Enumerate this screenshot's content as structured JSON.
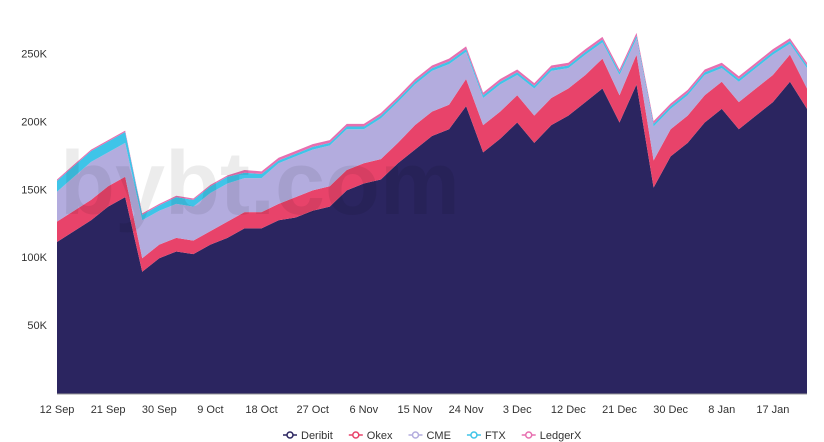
{
  "watermark": "bybt.com",
  "chart_data": {
    "type": "stacked_area",
    "categories": [
      "12 Sep",
      null,
      null,
      "21 Sep",
      null,
      null,
      "30 Sep",
      null,
      null,
      "9 Oct",
      null,
      null,
      "18 Oct",
      null,
      null,
      "27 Oct",
      null,
      null,
      "6 Nov",
      null,
      null,
      "15 Nov",
      null,
      null,
      "24 Nov",
      null,
      null,
      "3 Dec",
      null,
      null,
      "12 Dec",
      null,
      null,
      "21 Dec",
      null,
      null,
      "30 Dec",
      null,
      null,
      "8 Jan",
      null,
      null,
      "17 Jan",
      null,
      null
    ],
    "series": [
      {
        "name": "Deribit",
        "color": "#2b2560",
        "values": [
          112000,
          120000,
          128000,
          138000,
          145000,
          90000,
          100000,
          105000,
          103000,
          110000,
          115000,
          122000,
          122000,
          128000,
          130000,
          135000,
          138000,
          150000,
          155000,
          158000,
          170000,
          180000,
          190000,
          195000,
          212000,
          178000,
          188000,
          200000,
          185000,
          198000,
          205000,
          215000,
          225000,
          200000,
          228000,
          152000,
          175000,
          185000,
          200000,
          210000,
          195000,
          205000,
          215000,
          230000,
          210000
        ]
      },
      {
        "name": "Okex",
        "color": "#e8436a",
        "values": [
          15000,
          15000,
          15000,
          15000,
          15000,
          10000,
          10000,
          10000,
          10000,
          10000,
          12000,
          12000,
          12000,
          12000,
          15000,
          15000,
          15000,
          15000,
          15000,
          15000,
          15000,
          18000,
          18000,
          18000,
          20000,
          20000,
          20000,
          20000,
          20000,
          20000,
          20000,
          20000,
          22000,
          20000,
          22000,
          20000,
          20000,
          20000,
          20000,
          20000,
          20000,
          20000,
          20000,
          20000,
          15000
        ]
      },
      {
        "name": "CME",
        "color": "#b3acde",
        "values": [
          22000,
          25000,
          28000,
          25000,
          25000,
          28000,
          25000,
          25000,
          25000,
          28000,
          28000,
          25000,
          25000,
          30000,
          30000,
          30000,
          30000,
          30000,
          25000,
          30000,
          30000,
          30000,
          30000,
          30000,
          20000,
          20000,
          20000,
          15000,
          20000,
          20000,
          15000,
          15000,
          12000,
          15000,
          12000,
          25000,
          15000,
          15000,
          15000,
          10000,
          15000,
          15000,
          15000,
          8000,
          15000
        ]
      },
      {
        "name": "FTX",
        "color": "#3fc4e8",
        "values": [
          8000,
          8000,
          8000,
          8000,
          8000,
          4000,
          4000,
          5000,
          5000,
          5000,
          5000,
          4000,
          3000,
          2000,
          2000,
          2000,
          2000,
          2000,
          2000,
          2000,
          2000,
          2000,
          2000,
          2000,
          2000,
          2000,
          2000,
          2000,
          2000,
          2000,
          2000,
          2000,
          2000,
          2000,
          2000,
          2000,
          2000,
          2000,
          2000,
          2000,
          2000,
          2000,
          2000,
          2000,
          2000
        ]
      },
      {
        "name": "LedgerX",
        "color": "#e76fb0",
        "values": [
          1000,
          1000,
          1000,
          1000,
          1000,
          1000,
          1000,
          1000,
          1000,
          1000,
          1000,
          2000,
          2000,
          2000,
          2000,
          2000,
          2000,
          2000,
          2000,
          2000,
          2000,
          2000,
          2000,
          2000,
          2000,
          2000,
          2000,
          2000,
          2000,
          2000,
          2000,
          2000,
          2000,
          2000,
          2000,
          2000,
          2000,
          2000,
          2000,
          2000,
          2000,
          2000,
          2000,
          2000,
          2000
        ]
      }
    ],
    "ylim": [
      0,
      260000
    ],
    "yticks": [
      {
        "value": 50000,
        "label": "50K"
      },
      {
        "value": 100000,
        "label": "100K"
      },
      {
        "value": 150000,
        "label": "150K"
      },
      {
        "value": 200000,
        "label": "200K"
      },
      {
        "value": 250000,
        "label": "250K"
      }
    ],
    "legend": "bottom"
  }
}
